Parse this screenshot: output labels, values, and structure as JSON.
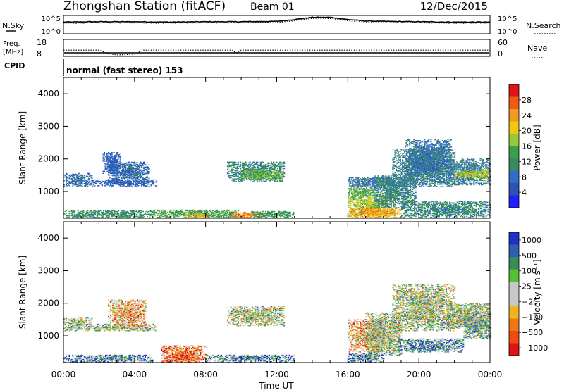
{
  "header": {
    "station": "Zhongshan Station (fitACF)",
    "beam": "Beam 01",
    "date": "12/Dec/2015"
  },
  "top_panels": {
    "nsky_label": "N.Sky",
    "nsearch_label": "N.Search",
    "noise_ticks": [
      "10^5",
      "10^0"
    ],
    "freq_label": "Freq.",
    "freq_unit": "[MHz]",
    "freq_ticks": [
      "18",
      "8"
    ],
    "nave_label": "Nave",
    "nave_ticks": [
      "60",
      "0"
    ],
    "cpid_label": "CPID",
    "cpid_text": "normal (fast stereo) 153"
  },
  "colors": {
    "power": [
      "#1f1fff",
      "#2e52b0",
      "#2f6ec6",
      "#3a8a5c",
      "#3aa04a",
      "#9ac83c",
      "#f0c814",
      "#f09a1e",
      "#f05a14",
      "#e01414"
    ],
    "velocity": [
      "#2030c8",
      "#2e60b0",
      "#3a8a5c",
      "#54c032",
      "#c8c8c8",
      "#c8c8c8",
      "#f0b41e",
      "#f07814",
      "#f04a14",
      "#e01414"
    ]
  },
  "chart_data": [
    {
      "type": "line",
      "panel": "noise",
      "x": [
        0,
        2,
        4,
        6,
        8,
        10,
        12,
        13,
        14,
        15,
        16,
        17,
        18,
        20,
        22,
        24
      ],
      "series": [
        {
          "name": "N.Sky",
          "values": [
            3.2,
            3.3,
            3.3,
            3.2,
            3.3,
            3.3,
            3.4,
            3.9,
            4.5,
            4.5,
            3.9,
            3.5,
            3.4,
            3.3,
            3.2,
            3.2
          ]
        },
        {
          "name": "N.Search",
          "values": [
            2.9,
            3.0,
            3.0,
            2.9,
            3.0,
            3.0,
            3.1,
            3.6,
            4.2,
            4.2,
            3.6,
            3.2,
            3.1,
            3.0,
            2.9,
            2.9
          ]
        }
      ]
    },
    {
      "type": "line",
      "panel": "freq-nave",
      "x": [
        0,
        2,
        2.5,
        3,
        3.5,
        4,
        4.5,
        6,
        9.5,
        9.7,
        10,
        12,
        24
      ],
      "series": [
        {
          "name": "Nave",
          "values": [
            22,
            22,
            10,
            5,
            6,
            8,
            22,
            22,
            22,
            12,
            22,
            22,
            22
          ]
        }
      ]
    },
    {
      "type": "heatmap",
      "title": "Power [dB]",
      "ylabel": "Slant Range [km]",
      "xlabel": "Time UT",
      "xlim": [
        0,
        24
      ],
      "ylim": [
        180,
        4500
      ],
      "xticks": [
        "00:00",
        "04:00",
        "08:00",
        "12:00",
        "16:00",
        "20:00",
        "00:00"
      ],
      "yticks": [
        "1000",
        "2000",
        "3000",
        "4000"
      ],
      "colorbar_label": "Power [dB]",
      "colorbar_ticks": [
        "4",
        "8",
        "12",
        "16",
        "20",
        "24",
        "28"
      ],
      "colorbar_range": [
        0,
        30
      ],
      "blobs": [
        {
          "t0": 0.0,
          "t1": 5.0,
          "r0": 180,
          "r1": 420,
          "v": 11
        },
        {
          "t0": 0.0,
          "t1": 1.6,
          "r0": 1150,
          "r1": 1550,
          "v": 7
        },
        {
          "t0": 1.6,
          "t1": 5.2,
          "r0": 1150,
          "r1": 1350,
          "v": 6
        },
        {
          "t0": 2.5,
          "t1": 4.8,
          "r0": 1300,
          "r1": 1900,
          "v": 7
        },
        {
          "t0": 2.2,
          "t1": 3.2,
          "r0": 1550,
          "r1": 2200,
          "v": 6
        },
        {
          "t0": 5.0,
          "t1": 10.0,
          "r0": 180,
          "r1": 430,
          "v": 13
        },
        {
          "t0": 6.8,
          "t1": 8.2,
          "r0": 180,
          "r1": 330,
          "v": 20
        },
        {
          "t0": 9.4,
          "t1": 11.2,
          "r0": 180,
          "r1": 360,
          "v": 24
        },
        {
          "t0": 10.5,
          "t1": 13.0,
          "r0": 180,
          "r1": 400,
          "v": 12
        },
        {
          "t0": 9.2,
          "t1": 12.4,
          "r0": 1300,
          "r1": 1900,
          "v": 10
        },
        {
          "t0": 10.0,
          "t1": 12.3,
          "r0": 1350,
          "r1": 1650,
          "v": 15
        },
        {
          "t0": 16.0,
          "t1": 18.6,
          "r0": 180,
          "r1": 900,
          "v": 17
        },
        {
          "t0": 16.0,
          "t1": 19.0,
          "r0": 180,
          "r1": 500,
          "v": 22
        },
        {
          "t0": 16.0,
          "t1": 18.5,
          "r0": 1100,
          "r1": 1450,
          "v": 8
        },
        {
          "t0": 16.0,
          "t1": 17.5,
          "r0": 800,
          "r1": 1100,
          "v": 14
        },
        {
          "t0": 17.5,
          "t1": 19.8,
          "r0": 500,
          "r1": 1500,
          "v": 10
        },
        {
          "t0": 18.5,
          "t1": 22.0,
          "r0": 1150,
          "r1": 2300,
          "v": 9
        },
        {
          "t0": 19.2,
          "t1": 21.8,
          "r0": 1500,
          "r1": 2600,
          "v": 8
        },
        {
          "t0": 21.5,
          "t1": 24.0,
          "r0": 1200,
          "r1": 2000,
          "v": 9
        },
        {
          "t0": 22.0,
          "t1": 24.0,
          "r0": 1400,
          "r1": 1650,
          "v": 17
        },
        {
          "t0": 19.0,
          "t1": 24.0,
          "r0": 180,
          "r1": 700,
          "v": 10
        }
      ]
    },
    {
      "type": "heatmap",
      "title": "Velocity [m s^-1]",
      "ylabel": "Slant Range [km]",
      "xlabel": "Time UT",
      "xlim": [
        0,
        24
      ],
      "ylim": [
        180,
        4500
      ],
      "xticks": [
        "00:00",
        "04:00",
        "08:00",
        "12:00",
        "16:00",
        "20:00",
        "00:00"
      ],
      "yticks": [
        "1000",
        "2000",
        "3000",
        "4000"
      ],
      "colorbar_label": "Velocity [m s⁻¹]",
      "colorbar_ticks": [
        "1000",
        "500",
        "100",
        "25",
        "−25",
        "−100",
        "−500",
        "−1000"
      ],
      "blobs": [
        {
          "t0": 0.0,
          "t1": 1.6,
          "r0": 1150,
          "r1": 1550,
          "v": 4
        },
        {
          "t0": 0.0,
          "t1": 5.0,
          "r0": 180,
          "r1": 420,
          "v": 2
        },
        {
          "t0": 1.6,
          "t1": 5.2,
          "r0": 1150,
          "r1": 1350,
          "v": 4
        },
        {
          "t0": 2.5,
          "t1": 4.6,
          "r0": 1300,
          "r1": 2100,
          "v": 6
        },
        {
          "t0": 5.5,
          "t1": 8.0,
          "r0": 180,
          "r1": 700,
          "v": 7
        },
        {
          "t0": 6.0,
          "t1": 7.6,
          "r0": 180,
          "r1": 450,
          "v": 8
        },
        {
          "t0": 8.0,
          "t1": 13.0,
          "r0": 180,
          "r1": 420,
          "v": 2
        },
        {
          "t0": 9.2,
          "t1": 12.4,
          "r0": 1300,
          "r1": 1900,
          "v": 4
        },
        {
          "t0": 16.0,
          "t1": 18.0,
          "r0": 500,
          "r1": 1500,
          "v": 6
        },
        {
          "t0": 17.0,
          "t1": 19.0,
          "r0": 400,
          "r1": 1700,
          "v": 4
        },
        {
          "t0": 18.8,
          "t1": 22.5,
          "r0": 500,
          "r1": 900,
          "v": 2
        },
        {
          "t0": 18.5,
          "t1": 22.0,
          "r0": 1150,
          "r1": 2600,
          "v": 4
        },
        {
          "t0": 21.5,
          "t1": 24.0,
          "r0": 1200,
          "r1": 2000,
          "v": 4
        },
        {
          "t0": 22.5,
          "t1": 24.0,
          "r0": 900,
          "r1": 1700,
          "v": 3
        },
        {
          "t0": 16.0,
          "t1": 18.0,
          "r0": 180,
          "r1": 450,
          "v": 2
        }
      ]
    }
  ]
}
